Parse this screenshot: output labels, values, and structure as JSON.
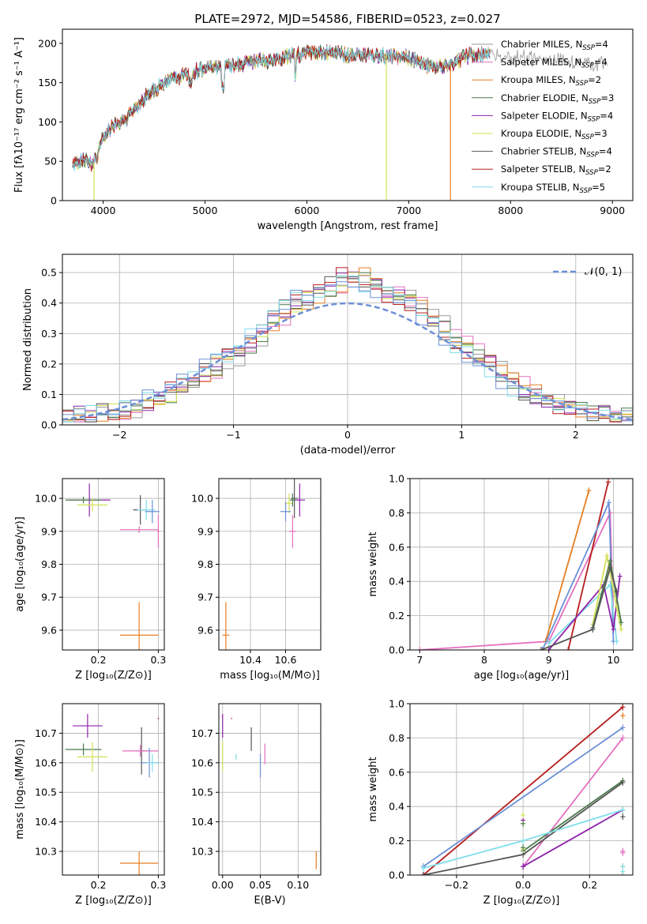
{
  "title": "PLATE=2972, MJD=54586, FIBERID=0523, z=0.027",
  "series_colors": {
    "Chabrier MILES": "#9a9a9a",
    "Salpeter MILES": "#e56fbf",
    "Kroupa MILES": "#e67e22",
    "Chabrier ELODIE": "#4a7a4a",
    "Salpeter ELODIE": "#8e24aa",
    "Kroupa ELODIE": "#d4e157",
    "Chabrier STELIB": "#555555",
    "Salpeter STELIB": "#b71c1c",
    "Kroupa STELIB": "#80deea",
    "Model line": "#6b8fd6"
  },
  "chart_data": [
    {
      "id": "spectrum",
      "type": "line",
      "xlabel": "wavelength [Angstrom, rest frame]",
      "ylabel": "Flux [fλ10⁻¹⁷ erg cm⁻² s⁻¹ A⁻¹]",
      "xlim": [
        3600,
        9200
      ],
      "ylim": [
        0,
        218
      ],
      "xticks": [
        4000,
        5000,
        6000,
        7000,
        8000,
        9000
      ],
      "yticks": [
        0,
        50,
        100,
        150,
        200
      ],
      "legend_loc": "upper right",
      "legend": [
        "Chabrier MILES, N_SSP=4",
        "Salpeter MILES, N_SSP=4",
        "Kroupa MILES, N_SSP=2",
        "Chabrier ELODIE, N_SSP=3",
        "Salpeter ELODIE, N_SSP=4",
        "Kroupa ELODIE, N_SSP=3",
        "Chabrier STELIB, N_SSP=4",
        "Salpeter STELIB, N_SSP=2",
        "Kroupa STELIB, N_SSP=5"
      ],
      "continuum": {
        "x": [
          3700,
          3800,
          3900,
          3950,
          4000,
          4100,
          4200,
          4300,
          4400,
          4600,
          4800,
          5000,
          5200,
          5400,
          5600,
          5800,
          5900,
          6000,
          6200,
          6400,
          6600,
          6800,
          7000,
          7200,
          7400,
          7600,
          7800
        ],
        "y": [
          45,
          52,
          45,
          60,
          80,
          95,
          100,
          115,
          130,
          150,
          160,
          168,
          170,
          175,
          178,
          182,
          185,
          188,
          188,
          186,
          185,
          184,
          182,
          170,
          172,
          185,
          185
        ]
      },
      "drops": [
        {
          "series": "Kroupa ELODIE",
          "x": 3910
        },
        {
          "series": "Kroupa ELODIE",
          "x": 6780
        },
        {
          "series": "Kroupa MILES",
          "x": 7410
        }
      ],
      "gray_tail": {
        "from": 7400,
        "to": 8950
      }
    },
    {
      "id": "residual-hist",
      "type": "histogram",
      "xlabel": "(data-model)/error",
      "ylabel": "Normed distribution",
      "xlim": [
        -2.5,
        2.5
      ],
      "ylim": [
        0,
        0.56
      ],
      "xticks": [
        -2,
        -1,
        0,
        1,
        2
      ],
      "yticks": [
        0.0,
        0.1,
        0.2,
        0.3,
        0.4,
        0.5
      ],
      "grid": true,
      "legend": [
        "𝒩(0, 1)"
      ],
      "legend_loc": "upper right",
      "bin_width": 0.1,
      "envelope": {
        "x": [
          -2.5,
          -2.0,
          -1.5,
          -1.0,
          -0.6,
          -0.2,
          0.0,
          0.2,
          0.6,
          1.0,
          1.5,
          2.0,
          2.5
        ],
        "y": [
          0.03,
          0.045,
          0.12,
          0.24,
          0.38,
          0.45,
          0.5,
          0.45,
          0.38,
          0.25,
          0.11,
          0.04,
          0.025
        ]
      }
    },
    {
      "id": "age-vs-Z",
      "type": "errorbar",
      "xlabel": "Z [log₁₀(Z/Z⊙)]",
      "ylabel": "age  [log₁₀(age/yr)]",
      "xlim": [
        0.14,
        0.31
      ],
      "ylim": [
        9.54,
        10.06
      ],
      "xticks": [
        0.2,
        0.3
      ],
      "yticks": [
        9.6,
        9.7,
        9.8,
        9.9,
        10.0
      ],
      "grid": true,
      "points": [
        {
          "series": "Salpeter ELODIE",
          "x": 0.185,
          "y": 9.995,
          "xerr": 0.035,
          "yerr": 0.05
        },
        {
          "series": "Chabrier ELODIE",
          "x": 0.175,
          "y": 9.995,
          "xerr": 0.03,
          "yerr": 0.01
        },
        {
          "series": "Kroupa ELODIE",
          "x": 0.19,
          "y": 9.98,
          "xerr": 0.025,
          "yerr": 0.02
        },
        {
          "series": "Chabrier STELIB",
          "x": 0.27,
          "y": 9.965,
          "xerr": 0.012,
          "yerr": 0.045
        },
        {
          "series": "Kroupa STELIB",
          "x": 0.28,
          "y": 9.965,
          "xerr": 0.015,
          "yerr": 0.03
        },
        {
          "series": "Model line",
          "x": 0.29,
          "y": 9.96,
          "xerr": 0.012,
          "yerr": 0.035
        },
        {
          "series": "Salpeter MILES",
          "x": 0.268,
          "y": 9.905,
          "xerr": 0.032,
          "yerr": 0.01
        },
        {
          "series": "Salpeter MILES",
          "x": 0.3,
          "y": 9.9,
          "xerr": 0.002,
          "yerr": 0.05
        },
        {
          "series": "Kroupa MILES",
          "x": 0.268,
          "y": 9.585,
          "xerr": 0.032,
          "yerr": 0.1
        }
      ]
    },
    {
      "id": "age-vs-mass",
      "type": "errorbar",
      "xlabel": "mass [log₁₀(M/M⊙)]",
      "ylabel": "",
      "xlim": [
        10.22,
        10.8
      ],
      "ylim": [
        9.54,
        10.06
      ],
      "xticks": [
        10.4,
        10.6
      ],
      "yticks": [
        9.6,
        9.7,
        9.8,
        9.9,
        10.0
      ],
      "grid": true,
      "points": [
        {
          "series": "Salpeter ELODIE",
          "x": 10.68,
          "y": 9.995,
          "xerr": 0.03,
          "yerr": 0.05
        },
        {
          "series": "Chabrier STELIB",
          "x": 10.65,
          "y": 10.0,
          "xerr": 0.02,
          "yerr": 0.06
        },
        {
          "series": "Kroupa ELODIE",
          "x": 10.62,
          "y": 9.985,
          "xerr": 0.02,
          "yerr": 0.03
        },
        {
          "series": "Chabrier ELODIE",
          "x": 10.64,
          "y": 9.995,
          "xerr": 0.015,
          "yerr": 0.02
        },
        {
          "series": "Model line",
          "x": 10.6,
          "y": 9.96,
          "xerr": 0.03,
          "yerr": 0.03
        },
        {
          "series": "Salpeter MILES",
          "x": 10.64,
          "y": 9.9,
          "xerr": 0.02,
          "yerr": 0.05
        },
        {
          "series": "Kroupa MILES",
          "x": 10.26,
          "y": 9.585,
          "xerr": 0.02,
          "yerr": 0.1
        }
      ]
    },
    {
      "id": "weight-vs-age",
      "type": "line",
      "xlabel": "age  [log₁₀(age/yr)]",
      "ylabel": "mass weight",
      "xlim": [
        6.85,
        10.3
      ],
      "ylim": [
        0,
        1
      ],
      "xticks": [
        7,
        8,
        9,
        10
      ],
      "yticks": [
        0.0,
        0.2,
        0.4,
        0.6,
        0.8,
        1.0
      ],
      "grid": true,
      "series": [
        {
          "key": "Salpeter MILES",
          "x": [
            7.0,
            9.0,
            9.95,
            10.0
          ],
          "y": [
            0.0,
            0.05,
            0.8,
            0.14
          ]
        },
        {
          "key": "Kroupa MILES",
          "x": [
            8.95,
            9.62
          ],
          "y": [
            0.05,
            0.93
          ]
        },
        {
          "key": "Salpeter STELIB",
          "x": [
            9.3,
            9.92
          ],
          "y": [
            0.0,
            0.98
          ]
        },
        {
          "key": "Model line",
          "x": [
            8.9,
            9.93,
            10.0
          ],
          "y": [
            0.0,
            0.86,
            0.05
          ]
        },
        {
          "key": "Kroupa STELIB",
          "x": [
            9.0,
            9.95,
            10.05
          ],
          "y": [
            0.04,
            0.38,
            0.05
          ]
        },
        {
          "key": "Salpeter ELODIE",
          "x": [
            9.0,
            9.85,
            10.0,
            10.1
          ],
          "y": [
            0.0,
            0.38,
            0.12,
            0.43
          ]
        },
        {
          "key": "Kroupa ELODIE",
          "x": [
            9.68,
            9.9,
            10.05,
            10.12
          ],
          "y": [
            0.15,
            0.55,
            0.25,
            0.12
          ]
        },
        {
          "key": "Chabrier ELODIE",
          "x": [
            9.68,
            9.95,
            10.12
          ],
          "y": [
            0.13,
            0.52,
            0.16
          ]
        },
        {
          "key": "Chabrier STELIB",
          "x": [
            8.88,
            9.68,
            9.95,
            10.05
          ],
          "y": [
            0.0,
            0.12,
            0.48,
            0.34
          ]
        }
      ]
    },
    {
      "id": "mass-vs-Z",
      "type": "errorbar",
      "xlabel": "Z [log₁₀(Z/Z⊙)]",
      "ylabel": "mass [log₁₀(M/M⊙)]",
      "xlim": [
        0.14,
        0.31
      ],
      "ylim": [
        10.22,
        10.8
      ],
      "xticks": [
        0.2,
        0.3
      ],
      "yticks": [
        10.3,
        10.4,
        10.5,
        10.6,
        10.7
      ],
      "grid": true,
      "points": [
        {
          "series": "Salpeter ELODIE",
          "x": 0.182,
          "y": 10.725,
          "xerr": 0.025,
          "yerr": 0.04
        },
        {
          "series": "Chabrier ELODIE",
          "x": 0.175,
          "y": 10.645,
          "xerr": 0.03,
          "yerr": 0.02
        },
        {
          "series": "Kroupa ELODIE",
          "x": 0.19,
          "y": 10.62,
          "xerr": 0.025,
          "yerr": 0.05
        },
        {
          "series": "Chabrier STELIB",
          "x": 0.272,
          "y": 10.64,
          "xerr": 0.01,
          "yerr": 0.08
        },
        {
          "series": "Salpeter MILES",
          "x": 0.27,
          "y": 10.64,
          "xerr": 0.03,
          "yerr": 0.02
        },
        {
          "series": "Model line",
          "x": 0.285,
          "y": 10.6,
          "xerr": 0.015,
          "yerr": 0.05
        },
        {
          "series": "Kroupa STELIB",
          "x": 0.29,
          "y": 10.6,
          "xerr": 0.01,
          "yerr": 0.03
        },
        {
          "series": "Salpeter STELIB",
          "x": 0.3,
          "y": 10.75,
          "xerr": 0.001,
          "yerr": 0.002
        },
        {
          "series": "Kroupa MILES",
          "x": 0.268,
          "y": 10.26,
          "xerr": 0.032,
          "yerr": 0.04
        }
      ]
    },
    {
      "id": "mass-vs-EBV",
      "type": "errorbar",
      "xlabel": "E(B-V)",
      "ylabel": "",
      "xlim": [
        -0.005,
        0.13
      ],
      "ylim": [
        10.22,
        10.8
      ],
      "xticks": [
        0.0,
        0.05,
        0.1
      ],
      "yticks": [
        10.3,
        10.4,
        10.5,
        10.6,
        10.7
      ],
      "grid": true,
      "points": [
        {
          "series": "Salpeter ELODIE",
          "x": 0.0,
          "y": 10.725,
          "xerr": 0.0,
          "yerr": 0.04
        },
        {
          "series": "Kroupa ELODIE",
          "x": 0.0,
          "y": 10.62,
          "xerr": 0.0,
          "yerr": 0.05
        },
        {
          "series": "Salpeter STELIB",
          "x": 0.012,
          "y": 10.75,
          "xerr": 0.0,
          "yerr": 0.002
        },
        {
          "series": "Kroupa STELIB",
          "x": 0.018,
          "y": 10.62,
          "xerr": 0.0,
          "yerr": 0.01
        },
        {
          "series": "Chabrier STELIB",
          "x": 0.038,
          "y": 10.68,
          "xerr": 0.0,
          "yerr": 0.04
        },
        {
          "series": "Model line",
          "x": 0.05,
          "y": 10.59,
          "xerr": 0.0,
          "yerr": 0.04
        },
        {
          "series": "Salpeter MILES",
          "x": 0.056,
          "y": 10.63,
          "xerr": 0.0,
          "yerr": 0.035
        },
        {
          "series": "Kroupa MILES",
          "x": 0.124,
          "y": 10.27,
          "xerr": 0.0,
          "yerr": 0.03
        }
      ]
    },
    {
      "id": "weight-vs-Z",
      "type": "line",
      "xlabel": "Z [log₁₀(Z/Z⊙)]",
      "ylabel": "mass weight",
      "xlim": [
        -0.34,
        0.33
      ],
      "ylim": [
        0,
        1
      ],
      "xticks": [
        -0.2,
        0.0,
        0.2
      ],
      "yticks": [
        0.0,
        0.2,
        0.4,
        0.6,
        0.8,
        1.0
      ],
      "grid": true,
      "series": [
        {
          "key": "Salpeter STELIB",
          "x": [
            -0.3,
            0.3
          ],
          "y": [
            0.0,
            0.98
          ]
        },
        {
          "key": "Model line",
          "x": [
            -0.3,
            0.3
          ],
          "y": [
            0.05,
            0.86
          ]
        },
        {
          "key": "Salpeter MILES",
          "x": [
            0.0,
            0.3
          ],
          "y": [
            0.05,
            0.8
          ]
        },
        {
          "key": "Chabrier ELODIE",
          "x": [
            0.0,
            0.3
          ],
          "y": [
            0.14,
            0.55
          ]
        },
        {
          "key": "Chabrier STELIB",
          "x": [
            -0.3,
            0.0,
            0.3
          ],
          "y": [
            0.0,
            0.12,
            0.54
          ]
        },
        {
          "key": "Salpeter ELODIE",
          "x": [
            0.0,
            0.3
          ],
          "y": [
            0.05,
            0.38
          ]
        },
        {
          "key": "Kroupa STELIB",
          "x": [
            -0.3,
            0.0,
            0.3
          ],
          "y": [
            0.04,
            0.2,
            0.38
          ]
        }
      ],
      "markers": [
        {
          "series": "Kroupa MILES",
          "x": 0.3,
          "y": [
            0.0,
            0.05,
            0.93
          ]
        },
        {
          "series": "Salpeter ELODIE",
          "x": 0.0,
          "y": [
            0.32,
            0.05
          ]
        },
        {
          "series": "Kroupa ELODIE",
          "x": 0.0,
          "y": [
            0.35,
            0.3,
            0.15
          ]
        },
        {
          "series": "Chabrier ELODIE",
          "x": 0.0,
          "y": [
            0.3,
            0.16
          ]
        },
        {
          "series": "Kroupa STELIB",
          "x": 0.3,
          "y": [
            0.05,
            0.02
          ]
        },
        {
          "series": "Salpeter MILES",
          "x": 0.3,
          "y": [
            0.14,
            0.13
          ]
        },
        {
          "series": "Chabrier STELIB",
          "x": 0.3,
          "y": [
            0.34
          ]
        }
      ]
    }
  ]
}
